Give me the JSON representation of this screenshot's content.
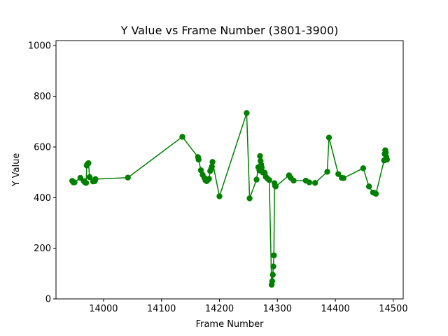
{
  "chart_data": {
    "type": "line",
    "title": "Y Value vs Frame Number (3801-3900)",
    "xlabel": "Frame Number",
    "ylabel": "Y Value",
    "xlim": [
      13918,
      14517
    ],
    "ylim": [
      0,
      1020
    ],
    "xticks": [
      14000,
      14100,
      14200,
      14300,
      14400,
      14500
    ],
    "yticks": [
      0,
      200,
      400,
      600,
      800,
      1000
    ],
    "grid": false,
    "color": "#008000",
    "x": [
      13946,
      13948,
      13950,
      13960,
      13966,
      13968,
      13970,
      13971,
      13972,
      13974,
      13976,
      13982,
      13985,
      13986,
      14042,
      14136,
      14163,
      14164,
      14168,
      14171,
      14174,
      14176,
      14178,
      14180,
      14182,
      14184,
      14186,
      14187,
      14188,
      14200,
      14247,
      14252,
      14264,
      14267,
      14269,
      14270,
      14271,
      14272,
      14273,
      14275,
      14278,
      14280,
      14283,
      14286,
      14290,
      14291,
      14292,
      14293,
      14294,
      14295,
      14296,
      14297,
      14320,
      14323,
      14328,
      14349,
      14355,
      14365,
      14386,
      14389,
      14405,
      14411,
      14414,
      14448,
      14458,
      14465,
      14468,
      14470,
      14484,
      14485,
      14486,
      14487,
      14488,
      14489
    ],
    "y": [
      466,
      460,
      460,
      478,
      465,
      460,
      458,
      527,
      532,
      536,
      481,
      464,
      465,
      473,
      479,
      640,
      560,
      550,
      508,
      490,
      478,
      468,
      465,
      470,
      474,
      505,
      515,
      523,
      541,
      405,
      734,
      397,
      471,
      520,
      507,
      564,
      545,
      530,
      518,
      499,
      498,
      482,
      475,
      469,
      56,
      70,
      95,
      128,
      172,
      457,
      447,
      444,
      488,
      478,
      467,
      467,
      460,
      458,
      502,
      637,
      493,
      478,
      477,
      516,
      444,
      420,
      418,
      415,
      547,
      572,
      587,
      578,
      560,
      550
    ]
  }
}
